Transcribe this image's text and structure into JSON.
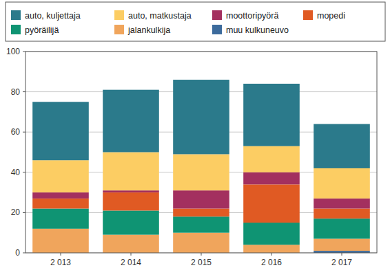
{
  "chart_data": {
    "type": "bar",
    "stacked": true,
    "grid": true,
    "legend": "top",
    "categories": [
      "2 013",
      "2 014",
      "2 015",
      "2 016",
      "2 017"
    ],
    "ylim": [
      0,
      100
    ],
    "yticks": [
      0,
      20,
      40,
      60,
      80,
      100
    ],
    "series": [
      {
        "name": "auto, kuljettaja",
        "color": "#2b7a8b",
        "values": [
          29,
          31,
          37,
          31,
          22
        ]
      },
      {
        "name": "auto, matkustaja",
        "color": "#fccd63",
        "values": [
          16,
          19,
          18,
          13,
          15
        ]
      },
      {
        "name": "moottoripyörä",
        "color": "#a3305f",
        "values": [
          3,
          1,
          9,
          6,
          5
        ]
      },
      {
        "name": "mopedi",
        "color": "#e05a23",
        "values": [
          5,
          9,
          4,
          19,
          5
        ]
      },
      {
        "name": "pyöräilijä",
        "color": "#0f9473",
        "values": [
          10,
          12,
          8,
          11,
          10
        ]
      },
      {
        "name": "jalankulkija",
        "color": "#f0a55c",
        "values": [
          12,
          9,
          10,
          4,
          6
        ]
      },
      {
        "name": "muu kulkuneuvo",
        "color": "#3c6b9c",
        "values": [
          0,
          0,
          0,
          0,
          1
        ]
      }
    ]
  }
}
